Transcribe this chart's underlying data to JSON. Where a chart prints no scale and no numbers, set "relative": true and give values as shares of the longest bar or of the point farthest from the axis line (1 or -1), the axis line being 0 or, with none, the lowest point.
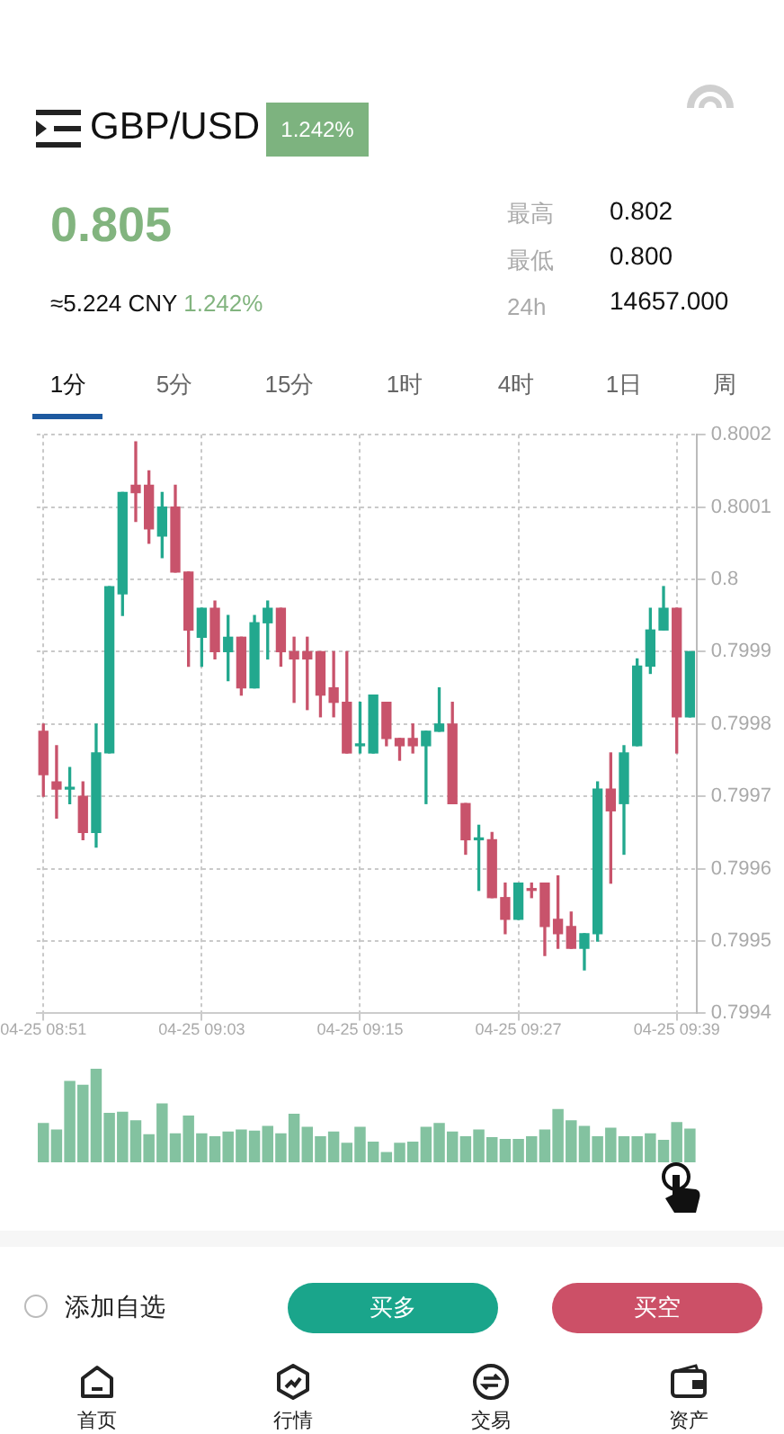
{
  "chart_data": [
    {
      "type": "candlestick",
      "title": "GBP/USD",
      "categories": [
        "04-25 08:51",
        null,
        null,
        null,
        null,
        null,
        null,
        null,
        null,
        null,
        null,
        null,
        "04-25 09:03",
        null,
        null,
        null,
        null,
        null,
        null,
        null,
        null,
        null,
        null,
        null,
        "04-25 09:15",
        null,
        null,
        null,
        null,
        null,
        null,
        null,
        null,
        null,
        null,
        null,
        "04-25 09:27",
        null,
        null,
        null,
        null,
        null,
        null,
        null,
        null,
        null,
        null,
        null,
        "04-25 09:39",
        null
      ],
      "ohlc": [
        [
          0.79979,
          0.7998,
          0.7997,
          0.79973
        ],
        [
          0.79972,
          0.79977,
          0.79967,
          0.79971
        ],
        [
          0.79971,
          0.79974,
          0.79969,
          0.79971
        ],
        [
          0.7997,
          0.79972,
          0.79964,
          0.79965
        ],
        [
          0.79965,
          0.7998,
          0.79963,
          0.79976
        ],
        [
          0.79976,
          0.79999,
          0.79976,
          0.79999
        ],
        [
          0.79998,
          0.80012,
          0.79995,
          0.80012
        ],
        [
          0.80013,
          0.80019,
          0.80008,
          0.80012
        ],
        [
          0.80013,
          0.80015,
          0.80005,
          0.80007
        ],
        [
          0.80006,
          0.80012,
          0.80003,
          0.8001
        ],
        [
          0.8001,
          0.80013,
          0.80001,
          0.80001
        ],
        [
          0.80001,
          0.80001,
          0.79988,
          0.79993
        ],
        [
          0.79992,
          0.79996,
          0.79988,
          0.79996
        ],
        [
          0.79996,
          0.79997,
          0.79989,
          0.7999
        ],
        [
          0.7999,
          0.79995,
          0.79986,
          0.79992
        ],
        [
          0.79992,
          0.79992,
          0.79984,
          0.79985
        ],
        [
          0.79985,
          0.79995,
          0.79985,
          0.79994
        ],
        [
          0.79994,
          0.79997,
          0.79989,
          0.79996
        ],
        [
          0.79996,
          0.79996,
          0.79988,
          0.7999
        ],
        [
          0.7999,
          0.79992,
          0.79983,
          0.79989
        ],
        [
          0.7999,
          0.79992,
          0.79982,
          0.79989
        ],
        [
          0.7999,
          0.7999,
          0.79981,
          0.79984
        ],
        [
          0.79985,
          0.7999,
          0.79981,
          0.79983
        ],
        [
          0.79983,
          0.7999,
          0.79976,
          0.79976
        ],
        [
          0.79977,
          0.79983,
          0.79976,
          0.79977
        ],
        [
          0.79976,
          0.79984,
          0.79976,
          0.79984
        ],
        [
          0.79983,
          0.79983,
          0.79977,
          0.79978
        ],
        [
          0.79978,
          0.79978,
          0.79975,
          0.79977
        ],
        [
          0.79978,
          0.7998,
          0.79976,
          0.79977
        ],
        [
          0.79977,
          0.79979,
          0.79969,
          0.79979
        ],
        [
          0.79979,
          0.79985,
          0.79979,
          0.7998
        ],
        [
          0.7998,
          0.79983,
          0.79969,
          0.79969
        ],
        [
          0.79969,
          0.79969,
          0.79962,
          0.79964
        ],
        [
          0.79964,
          0.79966,
          0.79957,
          0.79964
        ],
        [
          0.79964,
          0.79965,
          0.79956,
          0.79956
        ],
        [
          0.79956,
          0.79958,
          0.79951,
          0.79953
        ],
        [
          0.79953,
          0.79958,
          0.79953,
          0.79958
        ],
        [
          0.79957,
          0.79958,
          0.79956,
          0.79957
        ],
        [
          0.79958,
          0.79958,
          0.79948,
          0.79952
        ],
        [
          0.79953,
          0.79959,
          0.79949,
          0.79951
        ],
        [
          0.79952,
          0.79954,
          0.79949,
          0.79949
        ],
        [
          0.79949,
          0.79951,
          0.79946,
          0.79951
        ],
        [
          0.79951,
          0.79972,
          0.7995,
          0.79971
        ],
        [
          0.79971,
          0.79976,
          0.79958,
          0.79968
        ],
        [
          0.79969,
          0.79977,
          0.79962,
          0.79976
        ],
        [
          0.79977,
          0.79989,
          0.79977,
          0.79988
        ],
        [
          0.79988,
          0.79996,
          0.79987,
          0.79993
        ],
        [
          0.79993,
          0.79999,
          0.79993,
          0.79996
        ],
        [
          0.79996,
          0.79996,
          0.79976,
          0.79981
        ],
        [
          0.79981,
          0.7999,
          0.79981,
          0.7999
        ]
      ],
      "colors": [
        "#c8536b",
        "#c8536b",
        "#22a88e",
        "#c8536b",
        "#22a88e",
        "#22a88e",
        "#22a88e",
        "#c8536b",
        "#c8536b",
        "#22a88e",
        "#c8536b",
        "#c8536b",
        "#22a88e",
        "#c8536b",
        "#22a88e",
        "#c8536b",
        "#22a88e",
        "#22a88e",
        "#c8536b",
        "#c8536b",
        "#c8536b",
        "#c8536b",
        "#c8536b",
        "#c8536b",
        "#22a88e",
        "#22a88e",
        "#c8536b",
        "#c8536b",
        "#c8536b",
        "#22a88e",
        "#22a88e",
        "#c8536b",
        "#c8536b",
        "#22a88e",
        "#c8536b",
        "#c8536b",
        "#22a88e",
        "#c8536b",
        "#c8536b",
        "#c8536b",
        "#c8536b",
        "#22a88e",
        "#22a88e",
        "#c8536b",
        "#22a88e",
        "#22a88e",
        "#22a88e",
        "#22a88e",
        "#c8536b",
        "#22a88e"
      ],
      "ylim": [
        0.7994,
        0.8002
      ],
      "yticks": [
        0.7994,
        0.7995,
        0.7996,
        0.7997,
        0.7998,
        0.7999,
        0.8,
        0.8001,
        0.8002
      ],
      "grid": true,
      "annotations": [
        "1.242%",
        "0.805",
        "≈5.224 CNY",
        "1.242%",
        "最高",
        "0.802",
        "最低",
        "0.800",
        "24h",
        "14657.000",
        "1分",
        "5分",
        "15分",
        "1时",
        "4时",
        "1日",
        "周",
        "添加自选",
        "买多",
        "买空",
        "首页",
        "行情",
        "交易",
        "资产"
      ]
    },
    {
      "type": "bar",
      "relative": true,
      "color": "#83c2a0",
      "categories": [
        null,
        null,
        null,
        null,
        null,
        null,
        null,
        null,
        null,
        null,
        null,
        null,
        null,
        null,
        null,
        null,
        null,
        null,
        null,
        null,
        null,
        null,
        null,
        null,
        null,
        null,
        null,
        null,
        null,
        null,
        null,
        null,
        null,
        null,
        null,
        null,
        null,
        null,
        null,
        null,
        null,
        null,
        null,
        null,
        null,
        null,
        null,
        null,
        null,
        null
      ],
      "values": [
        0.42,
        0.35,
        0.87,
        0.83,
        1,
        0.53,
        0.54,
        0.45,
        0.3,
        0.63,
        0.31,
        0.5,
        0.31,
        0.28,
        0.33,
        0.35,
        0.34,
        0.39,
        0.31,
        0.52,
        0.38,
        0.28,
        0.33,
        0.21,
        0.38,
        0.22,
        0.11,
        0.21,
        0.22,
        0.38,
        0.42,
        0.33,
        0.28,
        0.35,
        0.27,
        0.25,
        0.25,
        0.28,
        0.35,
        0.57,
        0.45,
        0.39,
        0.28,
        0.37,
        0.28,
        0.28,
        0.31,
        0.24,
        0.43,
        0.36
      ]
    }
  ]
}
